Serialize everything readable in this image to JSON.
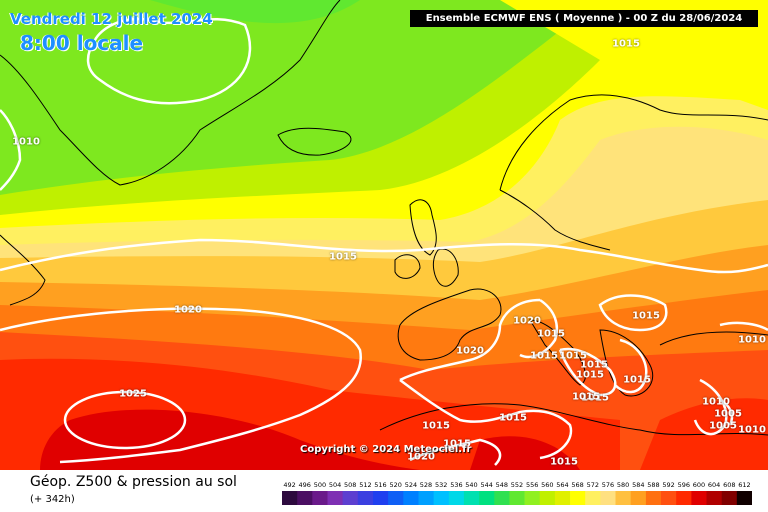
{
  "header": {
    "date": "Vendredi 12 juillet 2024",
    "time": "8:00 locale",
    "model": "Ensemble ECMWF ENS  ( Moyenne )  -  00 Z du 28/06/2024"
  },
  "isobar_labels": [
    "1015",
    "1010",
    "1015",
    "1020",
    "1025",
    "1020",
    "1020",
    "1015",
    "1015",
    "1015",
    "1015",
    "1015",
    "1015",
    "1015",
    "1015",
    "1015",
    "1010",
    "1010",
    "1005",
    "1005",
    "1010",
    "1015",
    "1015",
    "1015",
    "1020",
    "1015"
  ],
  "copyright": "Copyright © 2024 Meteociel.fr",
  "footer": {
    "field_label": "Géop. Z500 & pression au sol",
    "forecast_offset": "(+ 342h)"
  },
  "legend": {
    "values": [
      "492",
      "496",
      "500",
      "504",
      "508",
      "512",
      "516",
      "520",
      "524",
      "528",
      "532",
      "536",
      "540",
      "544",
      "548",
      "552",
      "556",
      "560",
      "564",
      "568",
      "572",
      "576",
      "580",
      "584",
      "588",
      "592",
      "596",
      "600",
      "604",
      "608",
      "612"
    ],
    "colors": [
      "#2d0a3e",
      "#4b0f63",
      "#6a1a8a",
      "#7e2fb3",
      "#5d3fd0",
      "#3b3fe0",
      "#1f3fef",
      "#0f5ff5",
      "#0080ff",
      "#00a0ff",
      "#00c0ff",
      "#00d8e8",
      "#00e0b0",
      "#00e080",
      "#30e050",
      "#60e830",
      "#90f020",
      "#c0f000",
      "#e0f000",
      "#ffff00",
      "#fff060",
      "#ffe080",
      "#ffc040",
      "#ffa020",
      "#ff7010",
      "#ff5010",
      "#ff2a00",
      "#e00000",
      "#b00000",
      "#800000",
      "#100000"
    ]
  }
}
